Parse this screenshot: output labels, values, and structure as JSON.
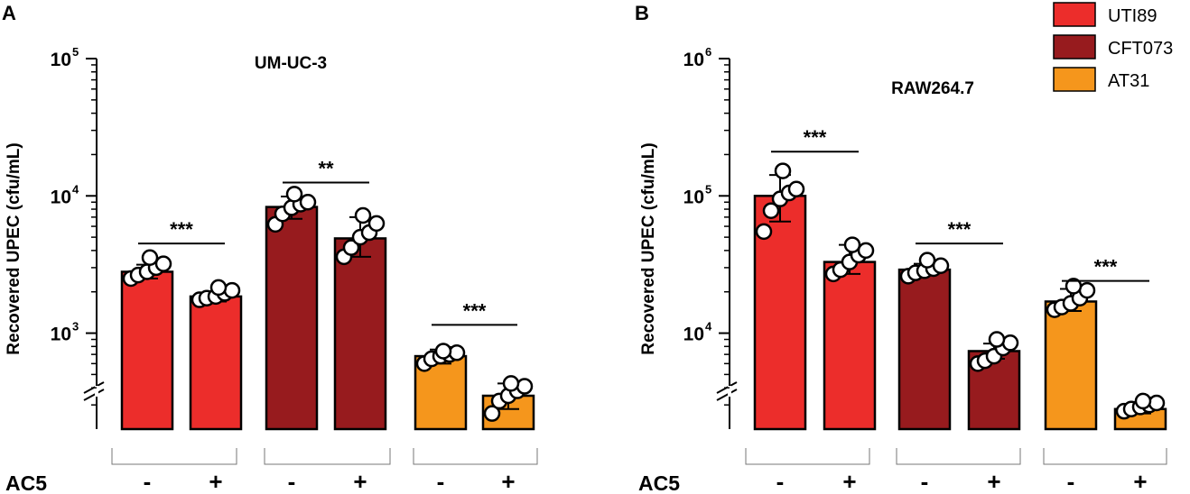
{
  "chart_data": [
    {
      "type": "bar",
      "panel": "A",
      "title": "UM-UC-3",
      "ylabel": "Recovered UPEC (cfu/mL)",
      "yscale": "log",
      "ylim": [
        200,
        100000
      ],
      "ytick_base": "10",
      "yticks": [
        {
          "value": 1000,
          "exp": "3"
        },
        {
          "value": 10000,
          "exp": "4"
        },
        {
          "value": 100000,
          "exp": "5"
        }
      ],
      "axis_break": true,
      "xlabel": "AC5",
      "bars": [
        {
          "strain": "UTI89",
          "ac5": "-",
          "mean": 2800,
          "err": [
            2500,
            3150
          ],
          "points": [
            2500,
            2650,
            2800,
            3000,
            3200,
            3550
          ]
        },
        {
          "strain": "UTI89",
          "ac5": "+",
          "mean": 1850,
          "err": [
            1700,
            2000
          ],
          "points": [
            1750,
            1800,
            1850,
            1950,
            2050,
            2150
          ]
        },
        {
          "strain": "CFT073",
          "ac5": "-",
          "mean": 8300,
          "err": [
            6800,
            9900
          ],
          "points": [
            6200,
            7400,
            8200,
            8700,
            9000,
            10300
          ]
        },
        {
          "strain": "CFT073",
          "ac5": "+",
          "mean": 4900,
          "err": [
            3600,
            7000
          ],
          "points": [
            3600,
            4200,
            5000,
            5400,
            6300,
            7200
          ]
        },
        {
          "strain": "AT31",
          "ac5": "-",
          "mean": 680,
          "err": [
            600,
            760
          ],
          "points": [
            600,
            650,
            680,
            700,
            720,
            740
          ]
        },
        {
          "strain": "AT31",
          "ac5": "+",
          "mean": 350,
          "err": [
            280,
            430
          ],
          "points": [
            260,
            320,
            350,
            380,
            410,
            430
          ]
        }
      ],
      "significance": [
        {
          "label": "***",
          "pair": [
            0,
            1
          ],
          "y": 4500
        },
        {
          "label": "**",
          "pair": [
            2,
            3
          ],
          "y": 12500
        },
        {
          "label": "***",
          "pair": [
            4,
            5
          ],
          "y": 1150
        }
      ]
    },
    {
      "type": "bar",
      "panel": "B",
      "title": "RAW264.7",
      "ylabel": "Recovered UPEC (cfu/mL)",
      "yscale": "log",
      "ylim": [
        2000,
        1000000
      ],
      "ytick_base": "10",
      "yticks": [
        {
          "value": 10000,
          "exp": "4"
        },
        {
          "value": 100000,
          "exp": "5"
        },
        {
          "value": 1000000,
          "exp": "6"
        }
      ],
      "axis_break": true,
      "xlabel": "AC5",
      "bars": [
        {
          "strain": "UTI89",
          "ac5": "-",
          "mean": 100000,
          "err": [
            65000,
            142000
          ],
          "points": [
            55000,
            78000,
            95000,
            105000,
            112000,
            152000
          ]
        },
        {
          "strain": "UTI89",
          "ac5": "+",
          "mean": 33000,
          "err": [
            27000,
            44000
          ],
          "points": [
            27000,
            29000,
            33000,
            37000,
            40000,
            44000
          ]
        },
        {
          "strain": "CFT073",
          "ac5": "-",
          "mean": 29000,
          "err": [
            26500,
            32000
          ],
          "points": [
            26000,
            27500,
            28500,
            29500,
            31000,
            34000
          ]
        },
        {
          "strain": "CFT073",
          "ac5": "+",
          "mean": 7400,
          "err": [
            6500,
            8400
          ],
          "points": [
            6000,
            6300,
            6800,
            7800,
            8500,
            9000
          ]
        },
        {
          "strain": "AT31",
          "ac5": "-",
          "mean": 17000,
          "err": [
            14500,
            21000
          ],
          "points": [
            14800,
            15500,
            16500,
            18000,
            20500,
            22000
          ]
        },
        {
          "strain": "AT31",
          "ac5": "+",
          "mean": 2800,
          "err": [
            2600,
            3100
          ],
          "points": [
            2700,
            2800,
            2900,
            3000,
            3100,
            3200
          ]
        }
      ],
      "significance": [
        {
          "label": "***",
          "pair": [
            0,
            1
          ],
          "y": 210000
        },
        {
          "label": "***",
          "pair": [
            2,
            3
          ],
          "y": 45000
        },
        {
          "label": "***",
          "pair": [
            4,
            5
          ],
          "y": 24000
        }
      ]
    }
  ],
  "legend": [
    {
      "label": "UTI89",
      "color": "#ec2d2b"
    },
    {
      "label": "CFT073",
      "color": "#971b1e"
    },
    {
      "label": "AT31",
      "color": "#f5961c"
    }
  ],
  "colors": {
    "UTI89": "#ec2d2b",
    "CFT073": "#971b1e",
    "AT31": "#f5961c"
  }
}
